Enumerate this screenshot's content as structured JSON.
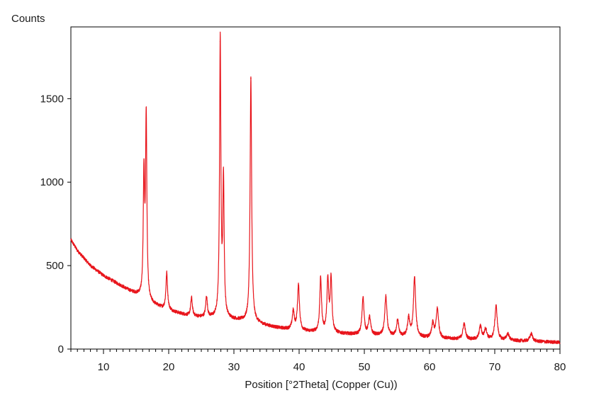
{
  "chart_data": {
    "type": "line",
    "ylabel": "Counts",
    "xlabel": "Position [°2Theta] (Copper (Cu))",
    "xlim": [
      5,
      80
    ],
    "ylim": [
      0,
      1930
    ],
    "x_ticks": [
      10,
      20,
      30,
      40,
      50,
      60,
      70,
      80
    ],
    "y_ticks": [
      0,
      500,
      1000,
      1500
    ],
    "grid": false,
    "series_color": "#e8141b",
    "series": [
      {
        "baseline": [
          [
            5,
            655
          ],
          [
            6,
            590
          ],
          [
            8,
            500
          ],
          [
            10,
            440
          ],
          [
            12,
            395
          ],
          [
            14,
            350
          ],
          [
            15.5,
            320
          ],
          [
            17,
            280
          ],
          [
            19,
            245
          ],
          [
            21,
            220
          ],
          [
            23,
            200
          ],
          [
            25,
            190
          ],
          [
            27,
            185
          ],
          [
            29,
            180
          ],
          [
            31,
            170
          ],
          [
            33,
            160
          ],
          [
            35,
            140
          ],
          [
            37,
            125
          ],
          [
            39,
            115
          ],
          [
            41,
            105
          ],
          [
            43,
            100
          ],
          [
            45,
            95
          ],
          [
            47,
            90
          ],
          [
            50,
            85
          ],
          [
            55,
            75
          ],
          [
            60,
            65
          ],
          [
            65,
            58
          ],
          [
            70,
            52
          ],
          [
            75,
            47
          ],
          [
            80,
            40
          ]
        ],
        "peaks": [
          {
            "x": 16.2,
            "height": 730,
            "width": 0.12
          },
          {
            "x": 16.55,
            "height": 1090,
            "width": 0.12
          },
          {
            "x": 19.7,
            "height": 220,
            "width": 0.15
          },
          {
            "x": 23.5,
            "height": 110,
            "width": 0.15
          },
          {
            "x": 25.8,
            "height": 125,
            "width": 0.15
          },
          {
            "x": 27.9,
            "height": 1660,
            "width": 0.12
          },
          {
            "x": 28.4,
            "height": 820,
            "width": 0.12
          },
          {
            "x": 32.6,
            "height": 1460,
            "width": 0.14
          },
          {
            "x": 39.1,
            "height": 110,
            "width": 0.18
          },
          {
            "x": 39.9,
            "height": 270,
            "width": 0.18
          },
          {
            "x": 43.3,
            "height": 325,
            "width": 0.16
          },
          {
            "x": 44.4,
            "height": 310,
            "width": 0.16
          },
          {
            "x": 44.9,
            "height": 325,
            "width": 0.16
          },
          {
            "x": 49.8,
            "height": 225,
            "width": 0.18
          },
          {
            "x": 50.8,
            "height": 105,
            "width": 0.2
          },
          {
            "x": 53.3,
            "height": 235,
            "width": 0.2
          },
          {
            "x": 55.1,
            "height": 95,
            "width": 0.2
          },
          {
            "x": 56.8,
            "height": 110,
            "width": 0.2
          },
          {
            "x": 57.7,
            "height": 355,
            "width": 0.2
          },
          {
            "x": 60.5,
            "height": 85,
            "width": 0.2
          },
          {
            "x": 61.2,
            "height": 175,
            "width": 0.22
          },
          {
            "x": 65.3,
            "height": 95,
            "width": 0.22
          },
          {
            "x": 67.8,
            "height": 80,
            "width": 0.22
          },
          {
            "x": 68.6,
            "height": 65,
            "width": 0.22
          },
          {
            "x": 70.2,
            "height": 205,
            "width": 0.22
          },
          {
            "x": 72.0,
            "height": 40,
            "width": 0.25
          },
          {
            "x": 75.6,
            "height": 45,
            "width": 0.25
          }
        ],
        "noise_amplitude": 10
      }
    ]
  }
}
